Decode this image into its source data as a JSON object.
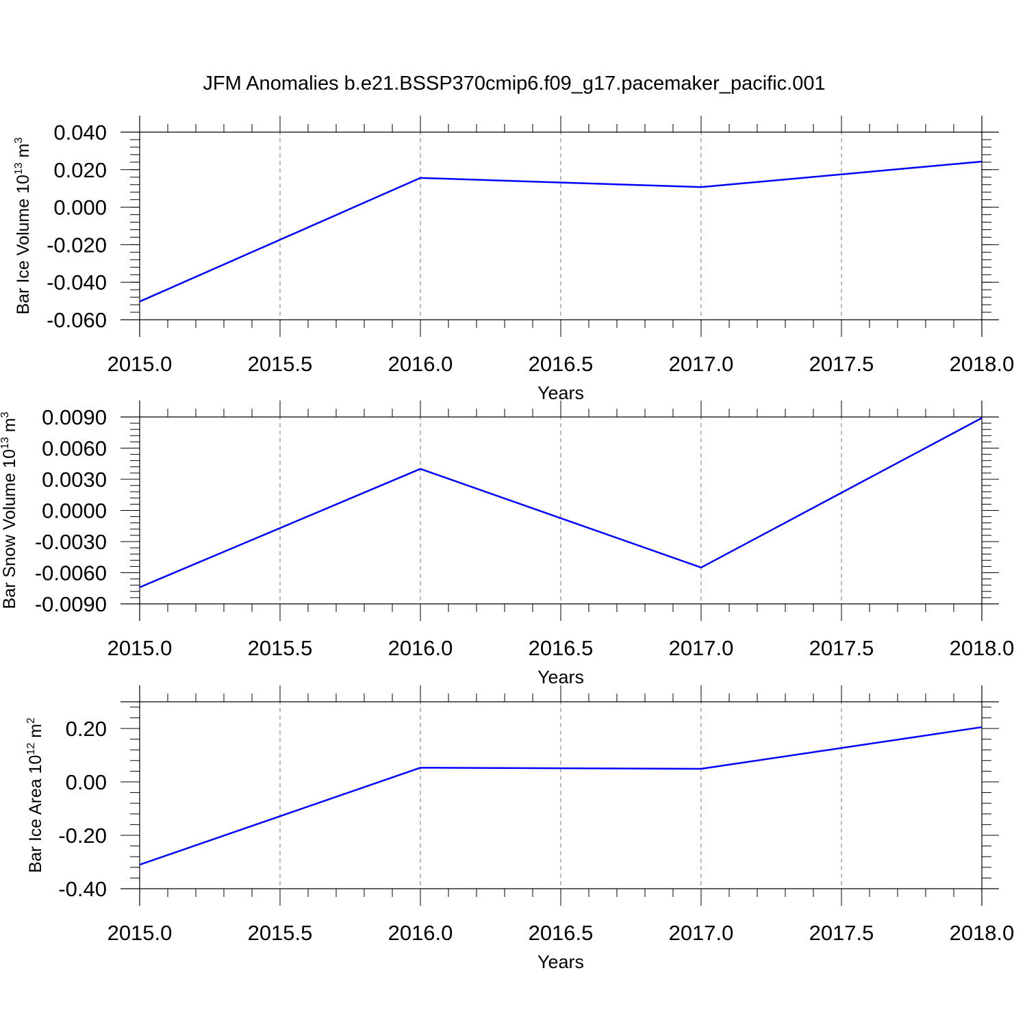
{
  "title": "JFM Anomalies b.e21.BSSP370cmip6.f09_g17.pacemaker_pacific.001",
  "colors": {
    "series": "#0000ff",
    "axis": "#000000",
    "grid": "#777777"
  },
  "chart_data": [
    {
      "type": "line",
      "ylabel": {
        "text": "Bar Ice Volume 10",
        "exp": "13",
        "unit": " m",
        "unit_exp": "3"
      },
      "xlabel": "Years",
      "xlim": [
        2015,
        2018
      ],
      "ylim": [
        -0.06,
        0.04
      ],
      "xticks": [
        "2015.0",
        "2015.5",
        "2016.0",
        "2016.5",
        "2017.0",
        "2017.5",
        "2018.0"
      ],
      "yticks": [
        "0.040",
        "0.020",
        "0.000",
        "-0.020",
        "-0.040",
        "-0.060"
      ],
      "grid": "vertical dashed",
      "x": [
        2015,
        2016,
        2017,
        2018
      ],
      "series": [
        {
          "values": [
            -0.0503,
            0.0156,
            0.0107,
            0.0243
          ]
        }
      ]
    },
    {
      "type": "line",
      "ylabel": {
        "text": "Bar Snow Volume 10",
        "exp": "13",
        "unit": " m",
        "unit_exp": "3"
      },
      "xlabel": "Years",
      "xlim": [
        2015,
        2018
      ],
      "ylim": [
        -0.009,
        0.009
      ],
      "xticks": [
        "2015.0",
        "2015.5",
        "2016.0",
        "2016.5",
        "2017.0",
        "2017.5",
        "2018.0"
      ],
      "yticks": [
        "0.0090",
        "0.0060",
        "0.0030",
        "0.0000",
        "-0.0030",
        "-0.0060",
        "-0.0090"
      ],
      "grid": "vertical dashed",
      "x": [
        2015,
        2016,
        2017,
        2018
      ],
      "series": [
        {
          "values": [
            -0.0074,
            0.004,
            -0.0055,
            0.0089
          ]
        }
      ]
    },
    {
      "type": "line",
      "ylabel": {
        "text": "Bar Ice Area 10",
        "exp": "12",
        "unit": " m",
        "unit_exp": "2"
      },
      "xlabel": "Years",
      "xlim": [
        2015,
        2018
      ],
      "ylim": [
        -0.4,
        0.3
      ],
      "xticks": [
        "2015.0",
        "2015.5",
        "2016.0",
        "2016.5",
        "2017.0",
        "2017.5",
        "2018.0"
      ],
      "yticks": [
        "0.20",
        "0.00",
        "-0.20",
        "-0.40"
      ],
      "grid": "vertical dashed",
      "x": [
        2015,
        2016,
        2017,
        2018
      ],
      "series": [
        {
          "values": [
            -0.31,
            0.053,
            0.049,
            0.205
          ]
        }
      ]
    }
  ]
}
